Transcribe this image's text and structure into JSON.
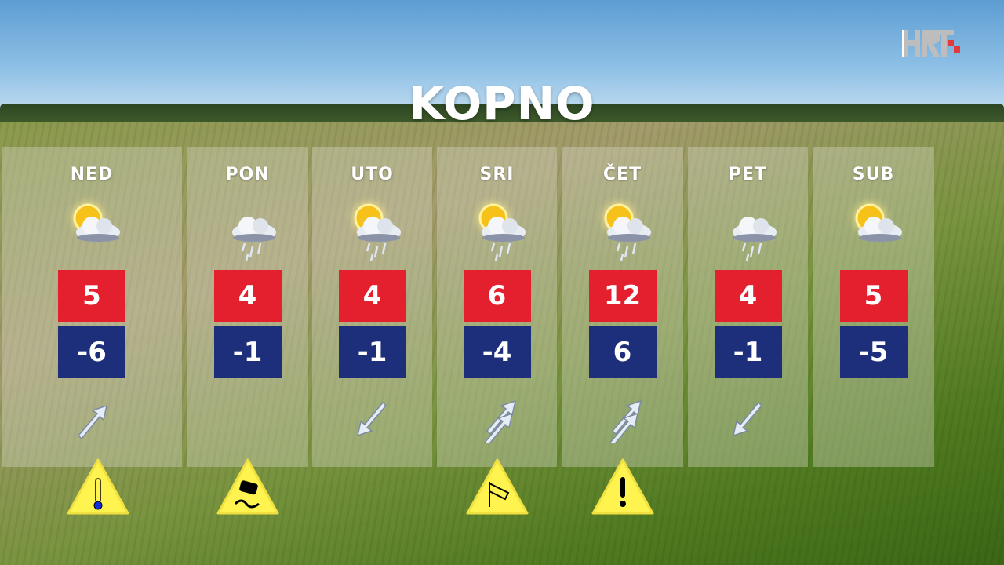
{
  "title": "KOPNO",
  "logo_text": "HRT",
  "colors": {
    "max": "#e4202e",
    "min": "#1d2f7a",
    "warning": "#fff34f"
  },
  "days": [
    {
      "label": "NED",
      "icon": "sun-cloud",
      "max": "5",
      "min": "-6",
      "wind": "single-up-right",
      "warning": "cold-thermometer"
    },
    {
      "label": "PON",
      "icon": "cloud-rain",
      "max": "4",
      "min": "-1",
      "wind": "none",
      "warning": "slippery-road"
    },
    {
      "label": "UTO",
      "icon": "sun-cloud-rain",
      "max": "4",
      "min": "-1",
      "wind": "single-down-left",
      "warning": "none"
    },
    {
      "label": "SRI",
      "icon": "sun-cloud-rain",
      "max": "6",
      "min": "-4",
      "wind": "double-up-right",
      "warning": "wind-windsock"
    },
    {
      "label": "ČET",
      "icon": "sun-cloud-rain",
      "max": "12",
      "min": "6",
      "wind": "double-up-right",
      "warning": "general-exclamation"
    },
    {
      "label": "PET",
      "icon": "cloud-rain",
      "max": "4",
      "min": "-1",
      "wind": "single-down-left",
      "warning": "none"
    },
    {
      "label": "SUB",
      "icon": "sun-cloud",
      "max": "5",
      "min": "-5",
      "wind": "none",
      "warning": "none"
    }
  ]
}
